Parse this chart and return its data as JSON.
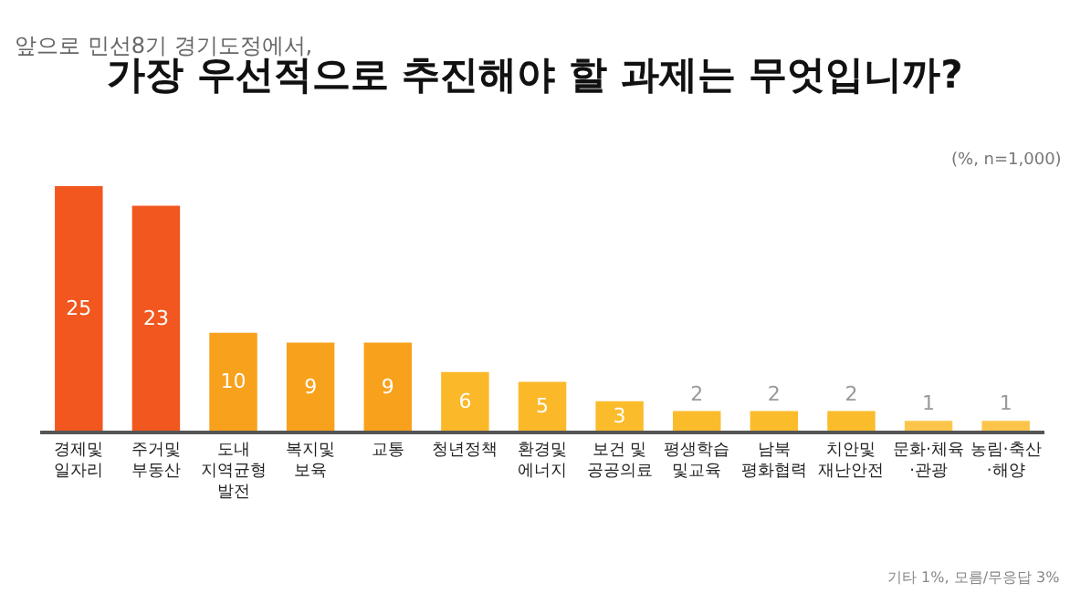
{
  "chart_data": {
    "type": "bar",
    "subtitle": "앞으로 민선8기 경기도정에서,",
    "title": "가장 우선적으로 추진해야 할 과제는 무엇입니까?",
    "categories": [
      "경제및\n일자리",
      "주거및\n부동산",
      "도내\n지역균형\n발전",
      "복지및\n보육",
      "교통",
      "청년정책",
      "환경및\n에너지",
      "보건 및\n공공의료",
      "평생학습\n및교육",
      "남북\n평화협력",
      "치안및\n재난안전",
      "문화·체육\n·관광",
      "농림·축산\n·해양"
    ],
    "values": [
      25,
      23,
      10,
      9,
      9,
      6,
      5,
      3,
      2,
      2,
      2,
      1,
      1
    ],
    "colors": [
      "#f1571e",
      "#f1571e",
      "#f8a11c",
      "#f8a11c",
      "#f8a11c",
      "#fbb829",
      "#fbb829",
      "#fbbc2c",
      "#fbbc2c",
      "#fbbc2c",
      "#fbbc2c",
      "#fcc54a",
      "#fcc54a"
    ],
    "data_labels": true,
    "annotations": [
      "(%, n=1,000)",
      "기타 1%, 모름/무응답 3%"
    ]
  }
}
